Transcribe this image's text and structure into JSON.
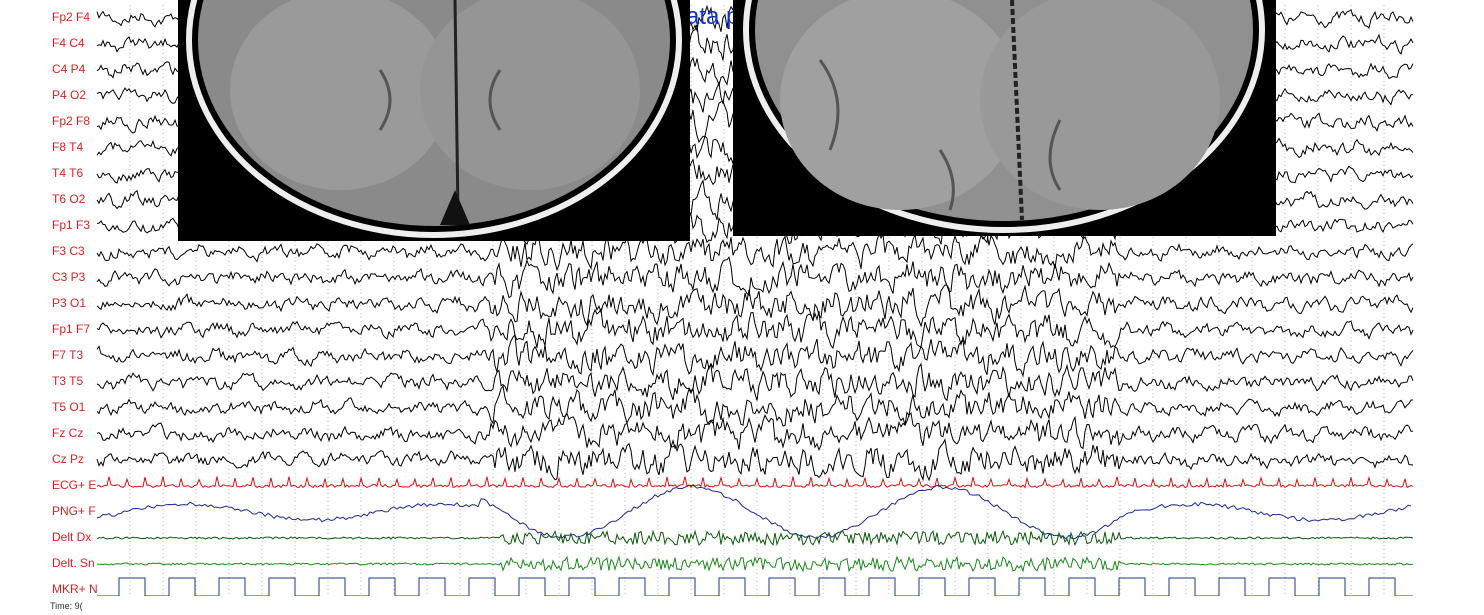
{
  "channels": [
    "Fp2 F4",
    "F4 C4",
    "C4 P4",
    "P4 O2",
    "Fp2 F8",
    "F8 T4",
    "T4 T6",
    "T6 O2",
    "Fp1 F3",
    "F3 C3",
    "C3 P3",
    "P3 O1",
    "Fp1 F7",
    "F7 T3",
    "T3 T5",
    "T5 O1",
    "Fz Cz",
    "Cz Pz",
    "ECG+ E",
    "PNG+ F",
    "Delt Dx",
    "Delt. Sn",
    "MKR+ N"
  ],
  "overlay_text": "ata p",
  "footer": "Time: 9("
}
